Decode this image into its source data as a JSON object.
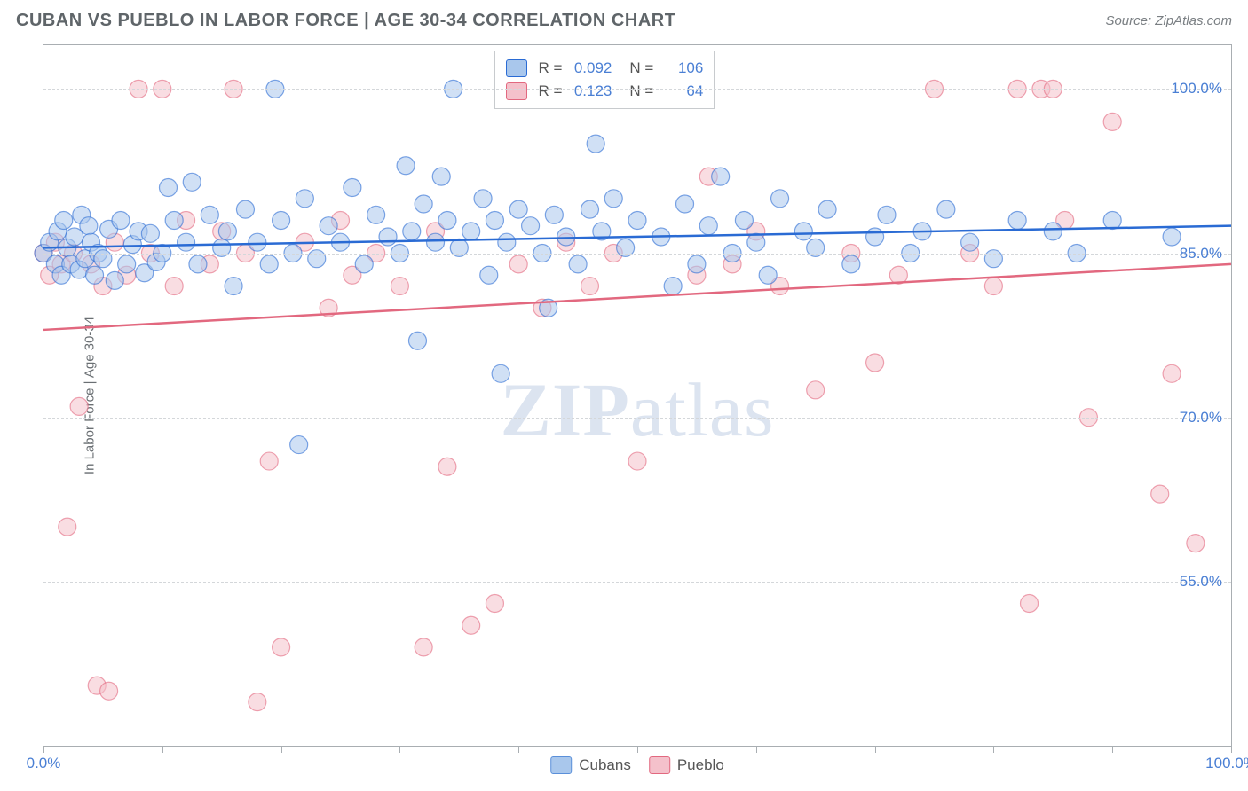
{
  "header": {
    "title": "CUBAN VS PUEBLO IN LABOR FORCE | AGE 30-34 CORRELATION CHART",
    "source": "Source: ZipAtlas.com"
  },
  "chart": {
    "type": "scatter",
    "ylabel": "In Labor Force | Age 30-34",
    "watermark": "ZIPatlas",
    "background_color": "#ffffff",
    "border_color": "#a9aeb2",
    "grid_color": "#d4d7da",
    "text_color": "#6a6f73",
    "tick_color": "#4a7fd4",
    "xlim": [
      0,
      100
    ],
    "ylim": [
      40,
      104
    ],
    "xticks": [
      0,
      10,
      20,
      30,
      40,
      50,
      60,
      70,
      80,
      90,
      100
    ],
    "xtick_labels": {
      "0": "0.0%",
      "100": "100.0%"
    },
    "yticks": [
      55,
      70,
      85,
      100
    ],
    "ytick_labels": {
      "55": "55.0%",
      "70": "70.0%",
      "85": "85.0%",
      "100": "100.0%"
    },
    "marker_radius": 10,
    "marker_opacity": 0.55,
    "line_width": 2.5,
    "series": [
      {
        "name": "Cubans",
        "fill": "#a9c7ec",
        "line": "#2a6bd4",
        "r": 0.092,
        "n": 106,
        "trend": {
          "y_at_x0": 85.5,
          "y_at_x100": 87.5
        },
        "points": [
          [
            0,
            85
          ],
          [
            0.5,
            86
          ],
          [
            1,
            84
          ],
          [
            1.2,
            87
          ],
          [
            1.5,
            83
          ],
          [
            1.7,
            88
          ],
          [
            2,
            85.5
          ],
          [
            2.3,
            84
          ],
          [
            2.6,
            86.5
          ],
          [
            3,
            83.5
          ],
          [
            3.2,
            88.5
          ],
          [
            3.5,
            84.5
          ],
          [
            3.8,
            87.5
          ],
          [
            4,
            86
          ],
          [
            4.3,
            83
          ],
          [
            4.6,
            85
          ],
          [
            5,
            84.5
          ],
          [
            5.5,
            87.2
          ],
          [
            6,
            82.5
          ],
          [
            6.5,
            88
          ],
          [
            7,
            84
          ],
          [
            7.5,
            85.8
          ],
          [
            8,
            87
          ],
          [
            8.5,
            83.2
          ],
          [
            9,
            86.8
          ],
          [
            9.5,
            84.2
          ],
          [
            10,
            85
          ],
          [
            10.5,
            91
          ],
          [
            11,
            88
          ],
          [
            12,
            86
          ],
          [
            12.5,
            91.5
          ],
          [
            13,
            84
          ],
          [
            14,
            88.5
          ],
          [
            15,
            85.5
          ],
          [
            15.5,
            87
          ],
          [
            16,
            82
          ],
          [
            17,
            89
          ],
          [
            18,
            86
          ],
          [
            19,
            84
          ],
          [
            19.5,
            100
          ],
          [
            20,
            88
          ],
          [
            21,
            85
          ],
          [
            21.5,
            67.5
          ],
          [
            22,
            90
          ],
          [
            23,
            84.5
          ],
          [
            24,
            87.5
          ],
          [
            25,
            86
          ],
          [
            26,
            91
          ],
          [
            27,
            84
          ],
          [
            28,
            88.5
          ],
          [
            29,
            86.5
          ],
          [
            30,
            85
          ],
          [
            30.5,
            93
          ],
          [
            31,
            87
          ],
          [
            31.5,
            77
          ],
          [
            32,
            89.5
          ],
          [
            33,
            86
          ],
          [
            33.5,
            92
          ],
          [
            34,
            88
          ],
          [
            34.5,
            100
          ],
          [
            35,
            85.5
          ],
          [
            36,
            87
          ],
          [
            37,
            90
          ],
          [
            37.5,
            83
          ],
          [
            38,
            88
          ],
          [
            38.5,
            74
          ],
          [
            39,
            86
          ],
          [
            40,
            89
          ],
          [
            41,
            87.5
          ],
          [
            42,
            85
          ],
          [
            42.5,
            80
          ],
          [
            43,
            88.5
          ],
          [
            44,
            86.5
          ],
          [
            45,
            84
          ],
          [
            46,
            89
          ],
          [
            46.5,
            95
          ],
          [
            47,
            87
          ],
          [
            48,
            90
          ],
          [
            49,
            85.5
          ],
          [
            50,
            88
          ],
          [
            52,
            86.5
          ],
          [
            53,
            82
          ],
          [
            54,
            89.5
          ],
          [
            55,
            84
          ],
          [
            56,
            87.5
          ],
          [
            57,
            92
          ],
          [
            58,
            85
          ],
          [
            59,
            88
          ],
          [
            60,
            86
          ],
          [
            61,
            83
          ],
          [
            62,
            90
          ],
          [
            64,
            87
          ],
          [
            65,
            85.5
          ],
          [
            66,
            89
          ],
          [
            68,
            84
          ],
          [
            70,
            86.5
          ],
          [
            71,
            88.5
          ],
          [
            73,
            85
          ],
          [
            74,
            87
          ],
          [
            76,
            89
          ],
          [
            78,
            86
          ],
          [
            80,
            84.5
          ],
          [
            82,
            88
          ],
          [
            85,
            87
          ],
          [
            87,
            85
          ],
          [
            90,
            88
          ],
          [
            95,
            86.5
          ]
        ]
      },
      {
        "name": "Pueblo",
        "fill": "#f4c1cb",
        "line": "#e2687f",
        "r": 0.123,
        "n": 64,
        "trend": {
          "y_at_x0": 78,
          "y_at_x100": 84
        },
        "points": [
          [
            0,
            85
          ],
          [
            0.5,
            83
          ],
          [
            1,
            86
          ],
          [
            1.5,
            84
          ],
          [
            2,
            60
          ],
          [
            2.5,
            85
          ],
          [
            3,
            71
          ],
          [
            4,
            84
          ],
          [
            4.5,
            45.5
          ],
          [
            5,
            82
          ],
          [
            5.5,
            45
          ],
          [
            6,
            86
          ],
          [
            7,
            83
          ],
          [
            8,
            100
          ],
          [
            9,
            85
          ],
          [
            10,
            100
          ],
          [
            11,
            82
          ],
          [
            12,
            88
          ],
          [
            14,
            84
          ],
          [
            15,
            87
          ],
          [
            16,
            100
          ],
          [
            17,
            85
          ],
          [
            18,
            44
          ],
          [
            19,
            66
          ],
          [
            20,
            49
          ],
          [
            22,
            86
          ],
          [
            24,
            80
          ],
          [
            25,
            88
          ],
          [
            26,
            83
          ],
          [
            28,
            85
          ],
          [
            30,
            82
          ],
          [
            32,
            49
          ],
          [
            33,
            87
          ],
          [
            34,
            65.5
          ],
          [
            36,
            51
          ],
          [
            38,
            53
          ],
          [
            40,
            84
          ],
          [
            42,
            80
          ],
          [
            44,
            86
          ],
          [
            46,
            82
          ],
          [
            48,
            85
          ],
          [
            50,
            66
          ],
          [
            54,
            100
          ],
          [
            55,
            83
          ],
          [
            56,
            92
          ],
          [
            58,
            84
          ],
          [
            60,
            87
          ],
          [
            62,
            82
          ],
          [
            65,
            72.5
          ],
          [
            68,
            85
          ],
          [
            70,
            75
          ],
          [
            72,
            83
          ],
          [
            75,
            100
          ],
          [
            78,
            85
          ],
          [
            80,
            82
          ],
          [
            82,
            100
          ],
          [
            83,
            53
          ],
          [
            84,
            100
          ],
          [
            85,
            100
          ],
          [
            86,
            88
          ],
          [
            88,
            70
          ],
          [
            90,
            97
          ],
          [
            94,
            63
          ],
          [
            95,
            74
          ],
          [
            97,
            58.5
          ]
        ]
      }
    ],
    "legend_bottom": [
      {
        "label": "Cubans",
        "fill": "#a9c7ec",
        "border": "#5a8fd9"
      },
      {
        "label": "Pueblo",
        "fill": "#f4c1cb",
        "border": "#e2687f"
      }
    ]
  }
}
